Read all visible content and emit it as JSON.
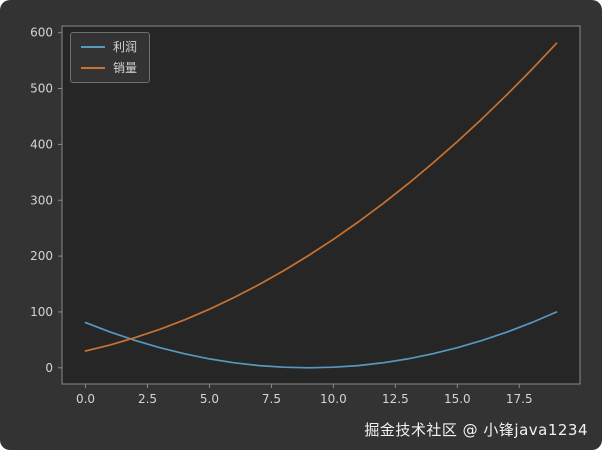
{
  "figure": {
    "bg": "#333333",
    "axes_bg": "#262626",
    "spine_color": "#8a8a8a",
    "text_color": "#d4d4d4",
    "legend_bg": "#333333",
    "legend_border": "#6f6f6f",
    "watermark_color": "#f2f2f2"
  },
  "watermark": "掘金技术社区 @ 小锋java1234",
  "chart_data": {
    "type": "line",
    "title": "",
    "xlabel": "",
    "ylabel": "",
    "grid": false,
    "legend_position": "upper-left",
    "x": [
      0,
      1,
      2,
      3,
      4,
      5,
      6,
      7,
      8,
      9,
      10,
      11,
      12,
      13,
      14,
      15,
      16,
      17,
      18,
      19
    ],
    "series": [
      {
        "name": "利润",
        "color": "#5599c0",
        "values": [
          81,
          64,
          49,
          36,
          25,
          16,
          9,
          4,
          1,
          0,
          1,
          4,
          9,
          16,
          25,
          36,
          49,
          64,
          81,
          100
        ]
      },
      {
        "name": "销量",
        "color": "#c9722f",
        "values": [
          30,
          41,
          54,
          69,
          86,
          105,
          126,
          149,
          174,
          201,
          230,
          261,
          294,
          329,
          366,
          405,
          446,
          489,
          534,
          581
        ]
      }
    ],
    "xlim": [
      -0.95,
      19.95
    ],
    "ylim": [
      -29,
      612
    ],
    "xticks": [
      0.0,
      2.5,
      5.0,
      7.5,
      10.0,
      12.5,
      15.0,
      17.5
    ],
    "yticks": [
      0,
      100,
      200,
      300,
      400,
      500,
      600
    ]
  }
}
